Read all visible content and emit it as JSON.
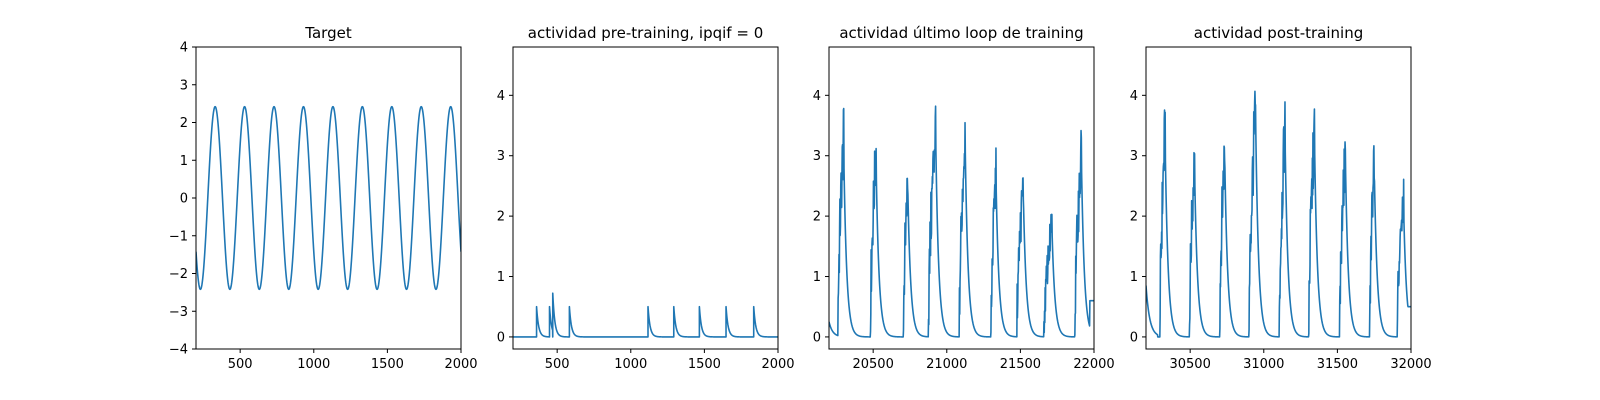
{
  "chart_data": [
    {
      "type": "line",
      "title": "Target",
      "xlabel": "",
      "ylabel": "",
      "xlim": [
        200,
        2000
      ],
      "ylim": [
        -4,
        4
      ],
      "xticks": [
        500,
        1000,
        1500,
        2000
      ],
      "yticks": [
        -4,
        -3,
        -2,
        -1,
        0,
        1,
        2,
        3,
        4
      ],
      "grid": false,
      "color": "#1f77b4",
      "series": [
        {
          "kind": "sine",
          "amplitude": 2.42,
          "period": 200,
          "peaks_x": [
            330,
            530,
            730,
            930,
            1130,
            1330,
            1530,
            1730,
            1930
          ],
          "end_value": -0.9
        }
      ]
    },
    {
      "type": "line",
      "title": "actividad pre-training, ipqif = 0",
      "xlabel": "",
      "ylabel": "",
      "xlim": [
        200,
        2000
      ],
      "ylim": [
        -0.2,
        4.8
      ],
      "xticks": [
        500,
        1000,
        1500,
        2000
      ],
      "yticks": [
        0,
        1,
        2,
        3,
        4
      ],
      "grid": false,
      "color": "#1f77b4",
      "series": [
        {
          "kind": "spikes",
          "baseline": 0,
          "decay": 14,
          "spikes": [
            {
              "x": 360,
              "y": 0.5
            },
            {
              "x": 448,
              "y": 0.5
            },
            {
              "x": 470,
              "y": 0.62
            },
            {
              "x": 583,
              "y": 0.5
            },
            {
              "x": 1117,
              "y": 0.5
            },
            {
              "x": 1292,
              "y": 0.5
            },
            {
              "x": 1466,
              "y": 0.5
            },
            {
              "x": 1647,
              "y": 0.5
            },
            {
              "x": 1835,
              "y": 0.5
            }
          ]
        }
      ]
    },
    {
      "type": "line",
      "title": "actividad último loop de training",
      "xlabel": "",
      "ylabel": "",
      "xlim": [
        20200,
        22000
      ],
      "ylim": [
        -0.2,
        4.8
      ],
      "xticks": [
        20500,
        21000,
        21500,
        22000
      ],
      "yticks": [
        0,
        1,
        2,
        3,
        4
      ],
      "grid": false,
      "color": "#1f77b4",
      "series": [
        {
          "kind": "bursts",
          "baseline": 0,
          "start_value": 0.25,
          "decay": 20,
          "bursts": [
            {
              "x": 20300,
              "peak": 3.35,
              "width": 40
            },
            {
              "x": 20520,
              "peak": 3.1,
              "width": 40
            },
            {
              "x": 20735,
              "peak": 2.7,
              "width": 30
            },
            {
              "x": 20925,
              "peak": 3.55,
              "width": 50
            },
            {
              "x": 21125,
              "peak": 3.45,
              "width": 40
            },
            {
              "x": 21335,
              "peak": 2.75,
              "width": 35
            },
            {
              "x": 21520,
              "peak": 2.55,
              "width": 45
            },
            {
              "x": 21715,
              "peak": 1.9,
              "width": 55
            },
            {
              "x": 21915,
              "peak": 3.1,
              "width": 45
            }
          ],
          "end_value": 0.6
        }
      ]
    },
    {
      "type": "line",
      "title": "actividad post-training",
      "xlabel": "",
      "ylabel": "",
      "xlim": [
        30200,
        32000
      ],
      "ylim": [
        -0.2,
        4.8
      ],
      "xticks": [
        30500,
        31000,
        31500,
        32000
      ],
      "yticks": [
        0,
        1,
        2,
        3,
        4
      ],
      "grid": false,
      "color": "#1f77b4",
      "series": [
        {
          "kind": "bursts",
          "baseline": 0,
          "start_value": 0.85,
          "decay": 20,
          "bursts": [
            {
              "x": 30330,
              "peak": 3.5,
              "width": 35
            },
            {
              "x": 30530,
              "peak": 3.0,
              "width": 35
            },
            {
              "x": 30735,
              "peak": 3.2,
              "width": 35
            },
            {
              "x": 30945,
              "peak": 3.85,
              "width": 45
            },
            {
              "x": 31145,
              "peak": 3.5,
              "width": 40
            },
            {
              "x": 31345,
              "peak": 3.45,
              "width": 40
            },
            {
              "x": 31555,
              "peak": 3.1,
              "width": 40
            },
            {
              "x": 31750,
              "peak": 3.1,
              "width": 30
            },
            {
              "x": 31950,
              "peak": 2.3,
              "width": 45
            }
          ],
          "end_value": 0.5
        }
      ]
    }
  ]
}
